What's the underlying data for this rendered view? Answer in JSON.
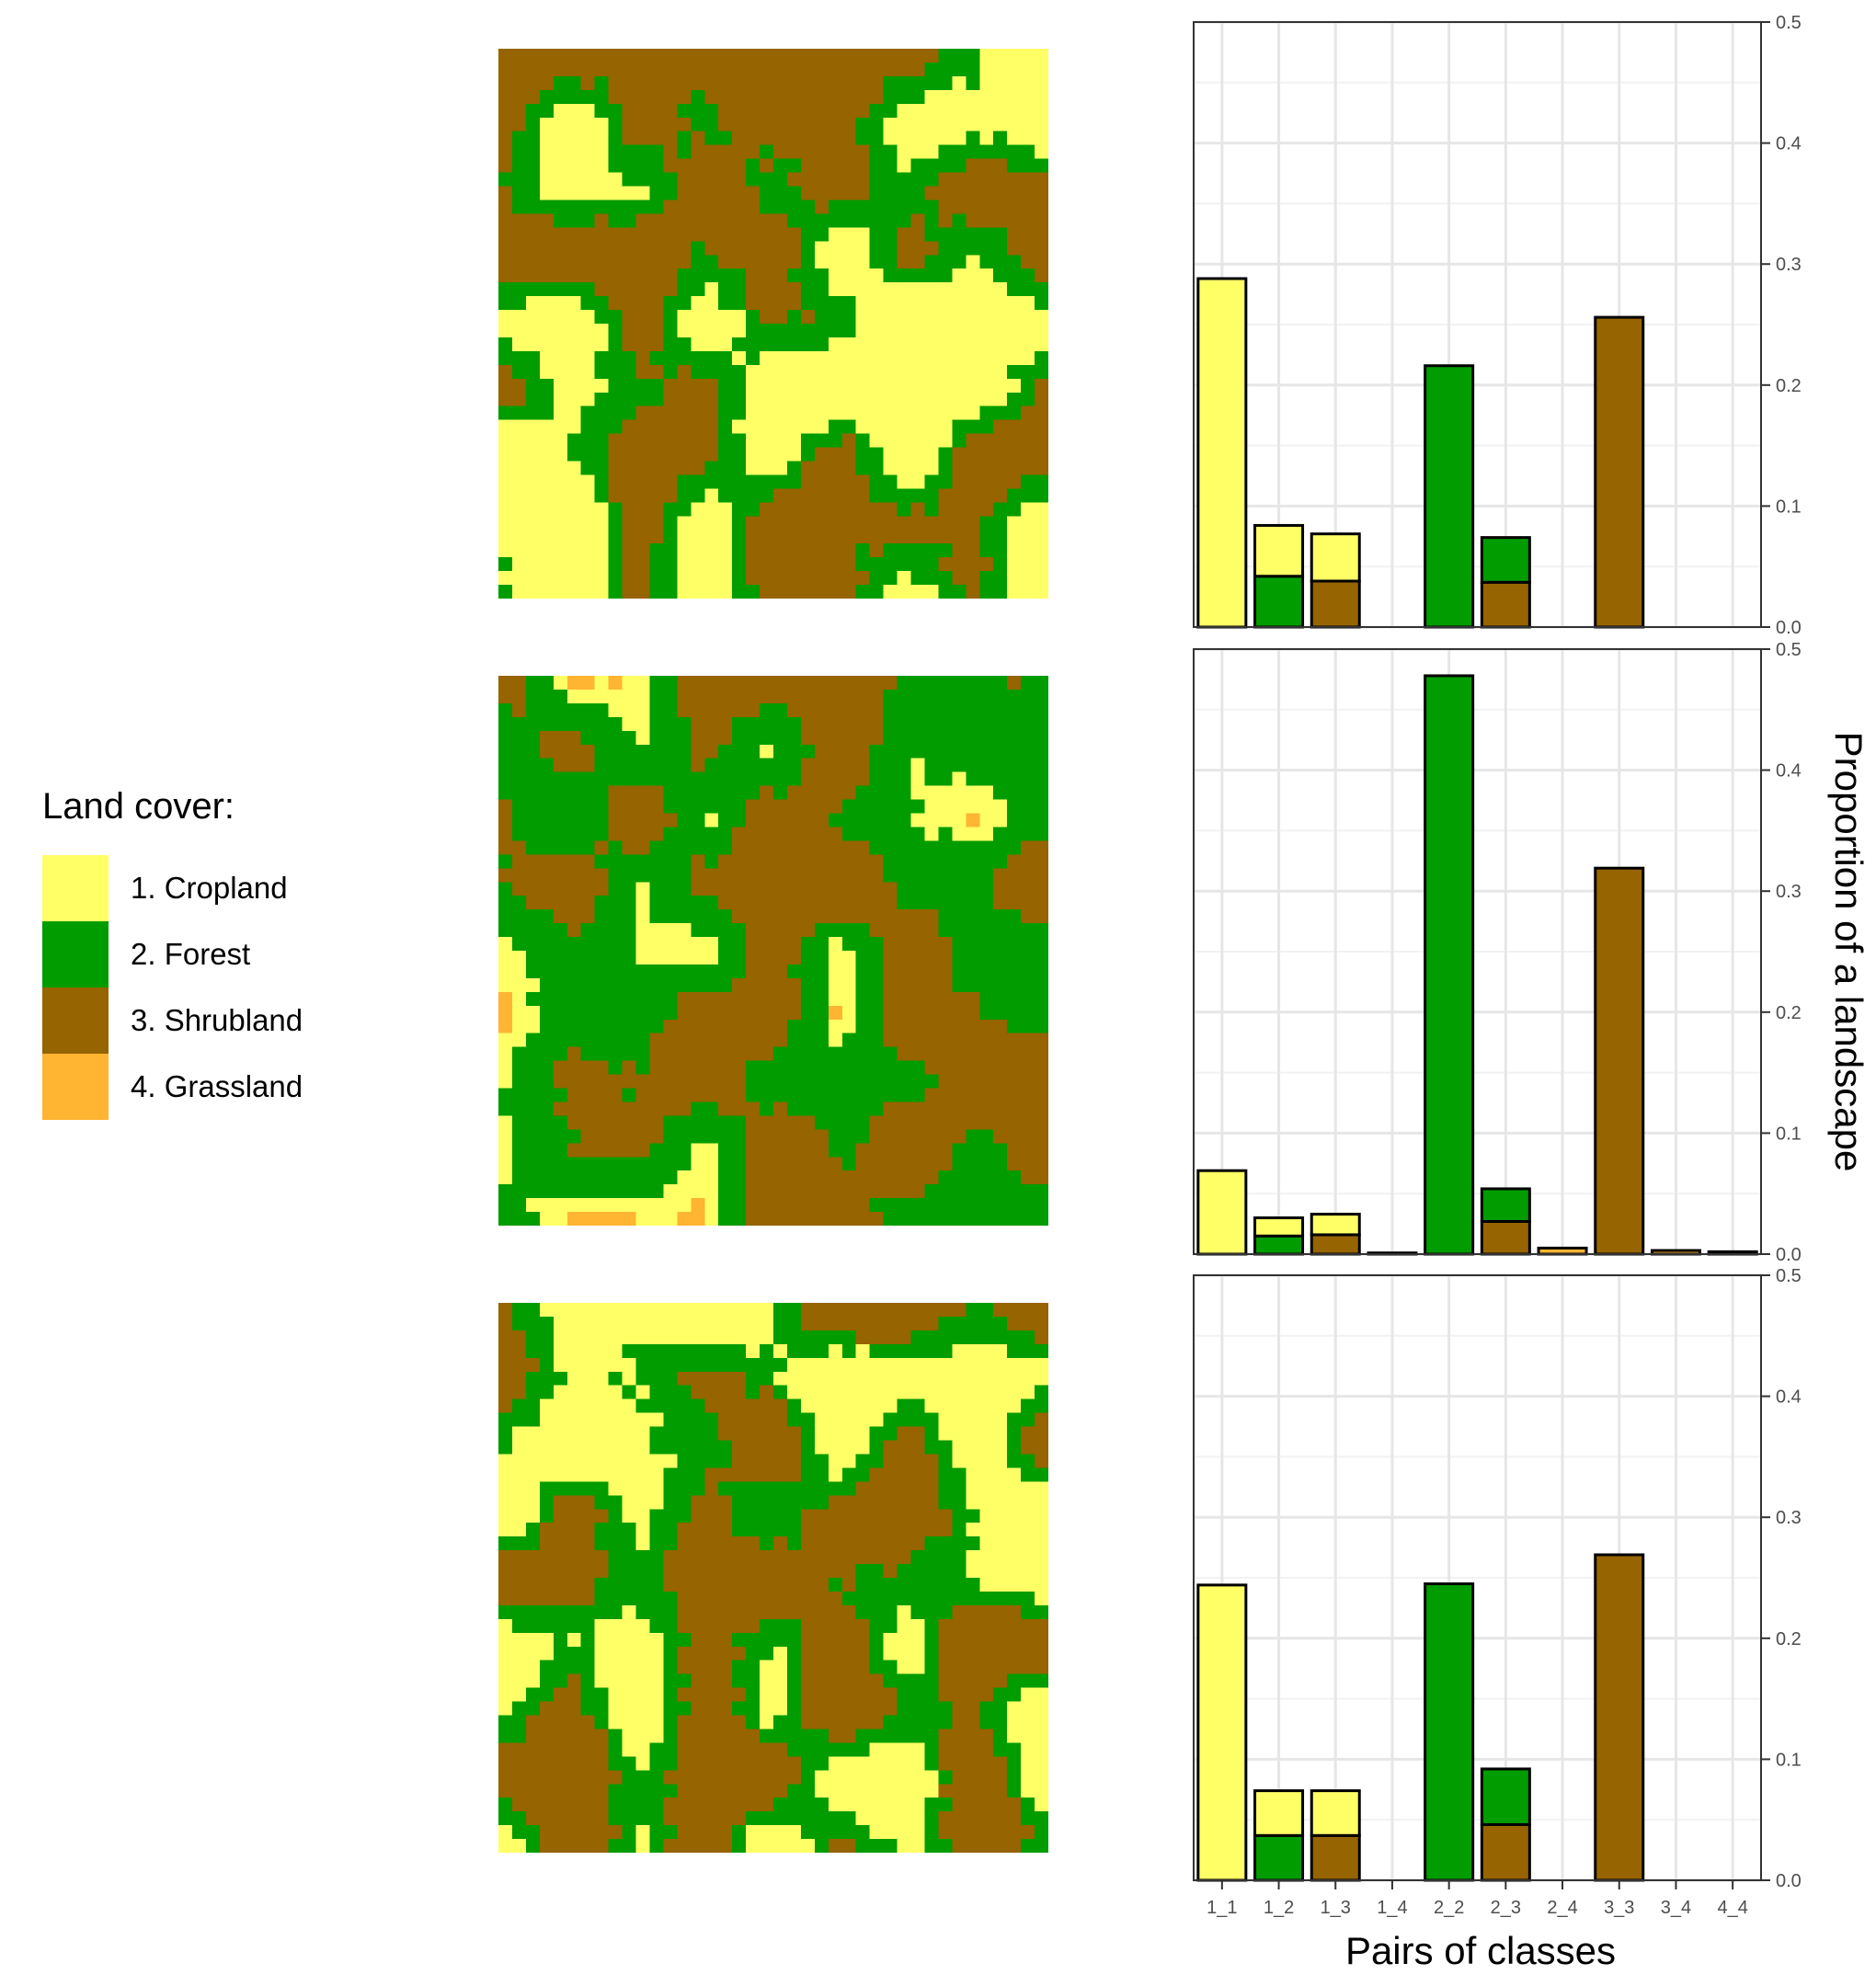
{
  "legend": {
    "title": "Land cover:",
    "items": [
      {
        "label": "1. Cropland",
        "color": "#ffff66"
      },
      {
        "label": "2. Forest",
        "color": "#009c00"
      },
      {
        "label": "3. Shrubland",
        "color": "#966400"
      },
      {
        "label": "4. Grassland",
        "color": "#ffb432"
      }
    ]
  },
  "chart_data": {
    "type": "bar",
    "layout": "stacked bars, three panels sharing one x axis",
    "xlabel": "Pairs of classes",
    "ylabel": "Proportion of a landscape",
    "ylim": [
      0,
      0.5
    ],
    "y_ticks": [
      0.0,
      0.1,
      0.2,
      0.3,
      0.4,
      0.5
    ],
    "y_tick_labels": [
      "0.0",
      "0.1",
      "0.2",
      "0.3",
      "0.4",
      "0.5"
    ],
    "y_axis_position": "right",
    "grid": true,
    "categories": [
      "1_1",
      "1_2",
      "1_3",
      "1_4",
      "2_2",
      "2_3",
      "2_4",
      "3_3",
      "3_4",
      "4_4"
    ],
    "panels": [
      {
        "series": [
          {
            "values": [
              0,
              0.042,
              0.038,
              0,
              0.216,
              0.037,
              0,
              0,
              0,
              0
            ],
            "color": "#009c00 / #966400 (lower class)"
          },
          {
            "values": [
              0.288,
              0.042,
              0.039,
              0,
              0,
              0.037,
              0,
              0.256,
              0,
              0
            ],
            "color": "#ffff66 / #009c00 / #966400 (upper class)"
          }
        ],
        "bottom": [
          {
            "category": "1_1",
            "color": "#ffff66",
            "value": 0.288
          },
          {
            "category": "1_2",
            "color": "#009c00",
            "value": 0.042
          },
          {
            "category": "1_3",
            "color": "#966400",
            "value": 0.038
          },
          {
            "category": "2_2",
            "color": "#009c00",
            "value": 0.216
          },
          {
            "category": "2_3",
            "color": "#966400",
            "value": 0.037
          },
          {
            "category": "3_3",
            "color": "#966400",
            "value": 0.256
          }
        ],
        "top": [
          {
            "category": "1_2",
            "color": "#ffff66",
            "value": 0.042
          },
          {
            "category": "1_3",
            "color": "#ffff66",
            "value": 0.039
          },
          {
            "category": "2_3",
            "color": "#009c00",
            "value": 0.037
          }
        ]
      },
      {
        "bottom": [
          {
            "category": "1_1",
            "color": "#ffff66",
            "value": 0.069
          },
          {
            "category": "1_2",
            "color": "#009c00",
            "value": 0.015
          },
          {
            "category": "1_3",
            "color": "#966400",
            "value": 0.016
          },
          {
            "category": "1_4",
            "color": "#ffb432",
            "value": 0.001
          },
          {
            "category": "2_2",
            "color": "#009c00",
            "value": 0.478
          },
          {
            "category": "2_3",
            "color": "#966400",
            "value": 0.027
          },
          {
            "category": "2_4",
            "color": "#ffb432",
            "value": 0.005
          },
          {
            "category": "3_3",
            "color": "#966400",
            "value": 0.319
          },
          {
            "category": "3_4",
            "color": "#ffb432",
            "value": 0.003
          },
          {
            "category": "4_4",
            "color": "#ffb432",
            "value": 0.002
          }
        ],
        "top": [
          {
            "category": "1_2",
            "color": "#ffff66",
            "value": 0.015
          },
          {
            "category": "1_3",
            "color": "#ffff66",
            "value": 0.017
          },
          {
            "category": "2_3",
            "color": "#009c00",
            "value": 0.027
          }
        ]
      },
      {
        "bottom": [
          {
            "category": "1_1",
            "color": "#ffff66",
            "value": 0.244
          },
          {
            "category": "1_2",
            "color": "#009c00",
            "value": 0.037
          },
          {
            "category": "1_3",
            "color": "#966400",
            "value": 0.037
          },
          {
            "category": "2_2",
            "color": "#009c00",
            "value": 0.245
          },
          {
            "category": "2_3",
            "color": "#966400",
            "value": 0.046
          },
          {
            "category": "3_3",
            "color": "#966400",
            "value": 0.269
          }
        ],
        "top": [
          {
            "category": "1_2",
            "color": "#ffff66",
            "value": 0.037
          },
          {
            "category": "1_3",
            "color": "#ffff66",
            "value": 0.037
          },
          {
            "category": "2_3",
            "color": "#009c00",
            "value": 0.046
          }
        ]
      }
    ]
  },
  "maps": [
    {
      "cover_fractions": {
        "cropland": 0.33,
        "forest": 0.28,
        "shrubland": 0.39,
        "grassland": 0.0
      }
    },
    {
      "cover_fractions": {
        "cropland": 0.08,
        "forest": 0.51,
        "shrubland": 0.4,
        "grassland": 0.01
      }
    },
    {
      "cover_fractions": {
        "cropland": 0.3,
        "forest": 0.32,
        "shrubland": 0.38,
        "grassland": 0.0
      }
    }
  ]
}
